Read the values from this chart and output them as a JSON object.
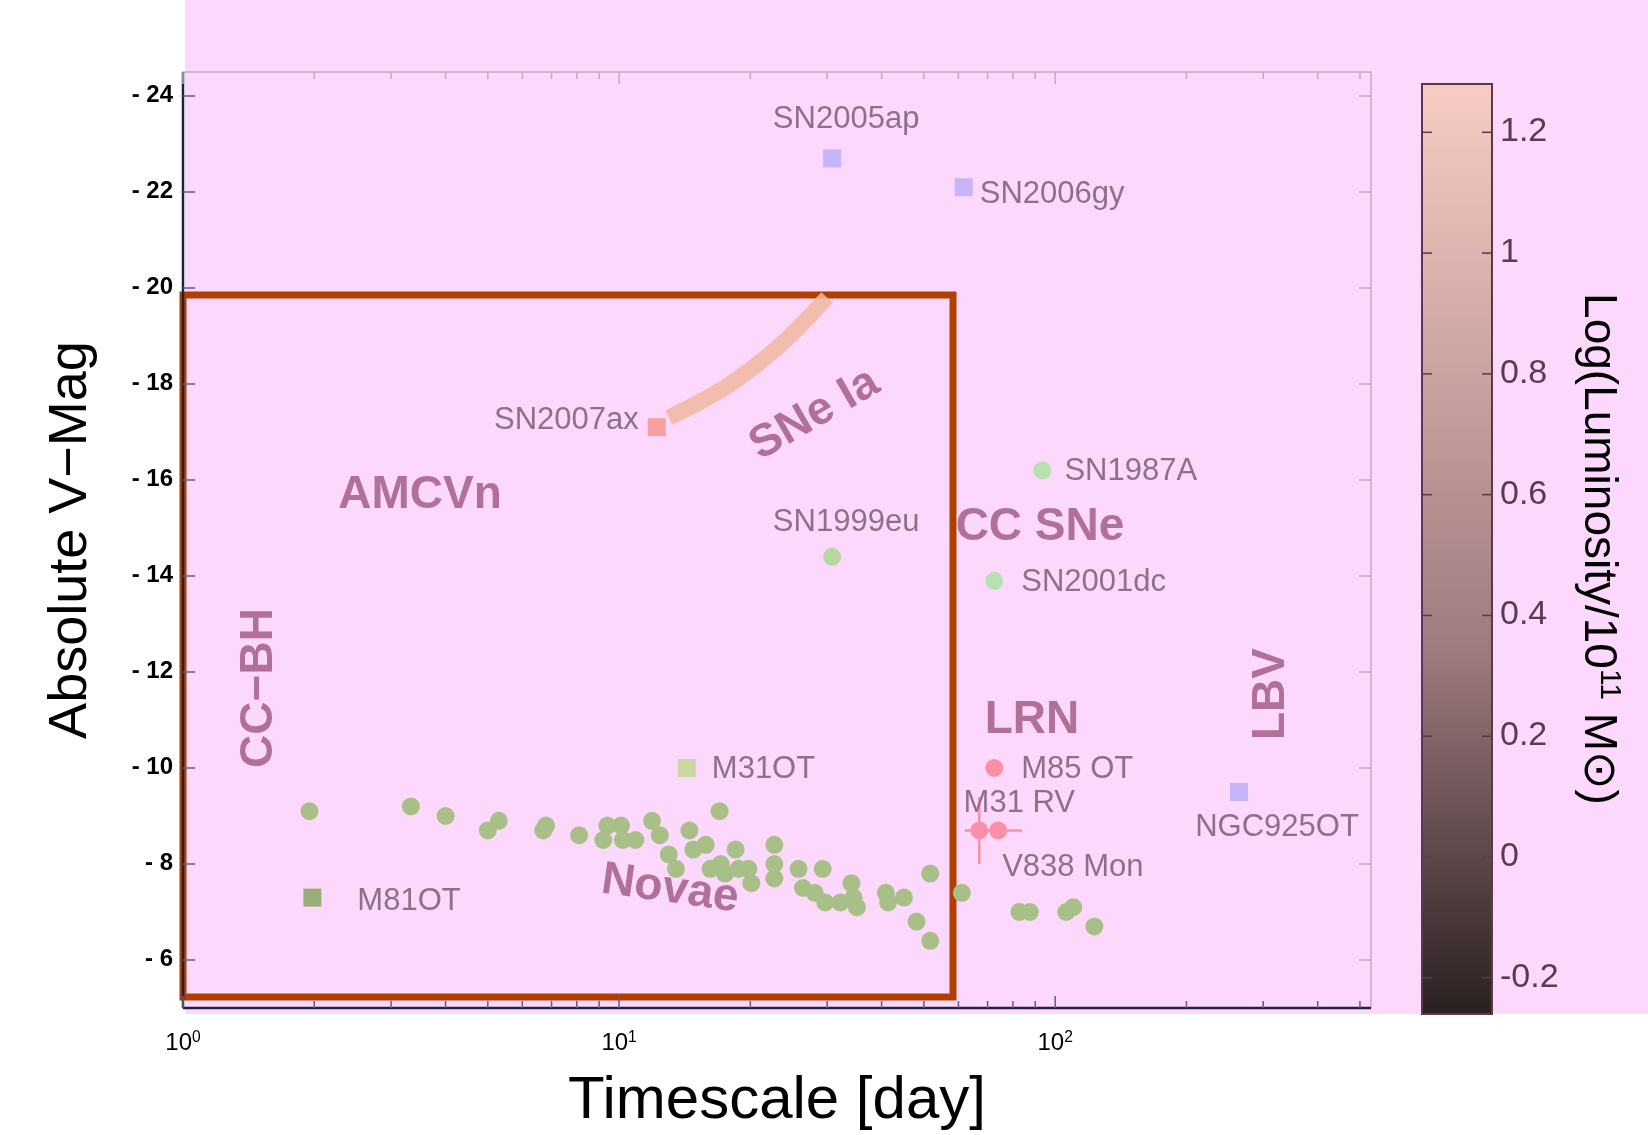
{
  "chart_data": {
    "type": "scatter",
    "xlabel": "Timescale [day]",
    "ylabel": "Absolute V−Mag",
    "clabel": "Log(Luminosity/10$^{11}$ M⊙)",
    "log": "x",
    "grid": false,
    "xlim": [
      1,
      530
    ],
    "ylim": [
      -5,
      -24.5
    ],
    "xticks": [
      {
        "value": 1,
        "label": "10$^{0}$"
      },
      {
        "value": 2,
        "label": null
      },
      {
        "value": 3,
        "label": null
      },
      {
        "value": 4,
        "label": null
      },
      {
        "value": 5,
        "label": null
      },
      {
        "value": 6,
        "label": null
      },
      {
        "value": 7,
        "label": null
      },
      {
        "value": 8,
        "label": null
      },
      {
        "value": 9,
        "label": null
      },
      {
        "value": 10,
        "label": "10$^{1}$"
      },
      {
        "value": 20,
        "label": null
      },
      {
        "value": 30,
        "label": null
      },
      {
        "value": 40,
        "label": null
      },
      {
        "value": 50,
        "label": null
      },
      {
        "value": 60,
        "label": null
      },
      {
        "value": 70,
        "label": null
      },
      {
        "value": 80,
        "label": null
      },
      {
        "value": 90,
        "label": null
      },
      {
        "value": 100,
        "label": "10$^{2}$"
      },
      {
        "value": 200,
        "label": null
      },
      {
        "value": 300,
        "label": null
      },
      {
        "value": 400,
        "label": null
      },
      {
        "value": 500,
        "label": null
      }
    ],
    "yticks": [
      {
        "value": -24,
        "label": "- 24"
      },
      {
        "value": -22,
        "label": "- 22"
      },
      {
        "value": -20,
        "label": "- 20"
      },
      {
        "value": -18,
        "label": "- 18"
      },
      {
        "value": -16,
        "label": "- 16"
      },
      {
        "value": -14,
        "label": "- 14"
      },
      {
        "value": -12,
        "label": "- 12"
      },
      {
        "value": -10,
        "label": "- 10"
      },
      {
        "value": -8,
        "label": "- 8"
      },
      {
        "value": -6,
        "label": "- 6"
      }
    ],
    "clim": [
      -0.26,
      1.28
    ],
    "cticks": [
      -0.2,
      0,
      0.2,
      0.4,
      0.6,
      0.8,
      1,
      1.2
    ],
    "series": [
      {
        "name": "SN2005ap",
        "color": "#c8b4f8",
        "marker": "square",
        "x": [
          30.8
        ],
        "values": [
          -22.7
        ]
      },
      {
        "name": "SN2006gy",
        "color": "#c8b4f8",
        "marker": "square",
        "x": [
          61.7
        ],
        "values": [
          -22.1
        ]
      },
      {
        "name": "NGC925OT",
        "color": "#c8b4f8",
        "marker": "square",
        "x": [
          264
        ],
        "values": [
          -9.5
        ]
      },
      {
        "name": "SN2007ax",
        "color": "#f8a0a0",
        "marker": "square",
        "x": [
          12.2
        ],
        "values": [
          -17.1
        ]
      },
      {
        "name": "SN1987A",
        "color": "#b8e0b0",
        "marker": "circle",
        "x": [
          93.5
        ],
        "values": [
          -16.2
        ]
      },
      {
        "name": "SN1999eu",
        "color": "#b8d8a0",
        "marker": "circle",
        "x": [
          30.8
        ],
        "values": [
          -14.4
        ]
      },
      {
        "name": "SN2001dc",
        "color": "#b8e0b0",
        "marker": "circle",
        "x": [
          72.5
        ],
        "values": [
          -13.9
        ]
      },
      {
        "name": "M31OT",
        "color": "#c8d8a0",
        "marker": "square",
        "x": [
          14.3
        ],
        "values": [
          -10.0
        ]
      },
      {
        "name": "M81OT",
        "color": "#98b078",
        "marker": "square",
        "x": [
          1.98
        ],
        "values": [
          -7.3
        ]
      },
      {
        "name": "M85 OT",
        "color": "#f890a8",
        "marker": "circle",
        "x": [
          72.5
        ],
        "values": [
          -10.0
        ]
      },
      {
        "name": "M31 RV",
        "color": "#f890a8",
        "marker": "circle",
        "x": [
          67
        ],
        "values": [
          -8.7
        ],
        "errors": [
          [
            -9.4,
            -8.0
          ]
        ]
      },
      {
        "name": "V838 Mon",
        "color": "#f890a8",
        "marker": "circle",
        "x": [
          74
        ],
        "values": [
          -8.7
        ],
        "xerrors": [
          [
            62,
            84
          ]
        ]
      },
      {
        "color": "#a8c088",
        "marker": "circle",
        "x": [
          1.95,
          3.33,
          4.0,
          5.0,
          5.3,
          6.7,
          6.8,
          8.1,
          9.2,
          9.4,
          10.1,
          10.2,
          10.9,
          11.9,
          12.4,
          13.0,
          13.5,
          14.5,
          14.8,
          15.8,
          16.2,
          17.0,
          17.1,
          17.5,
          18.5,
          18.8,
          19.8,
          20.1,
          22.7,
          22.7,
          22.7,
          25.8,
          26.4,
          28.1,
          29.3,
          29.7,
          32.2,
          34.1,
          34.5,
          35.1,
          40.9,
          41.4,
          45.0,
          48.1,
          51.7,
          51.7,
          61.1,
          82.8,
          87.5,
          106,
          110,
          123
        ],
        "values": [
          -9.1,
          -9.2,
          -9.0,
          -8.7,
          -8.9,
          -8.7,
          -8.8,
          -8.6,
          -8.5,
          -8.8,
          -8.8,
          -8.5,
          -8.5,
          -8.9,
          -8.6,
          -8.2,
          -7.9,
          -8.7,
          -8.3,
          -8.4,
          -7.9,
          -9.1,
          -8.0,
          -7.8,
          -8.3,
          -7.9,
          -7.9,
          -7.6,
          -8.4,
          -8.0,
          -7.7,
          -7.9,
          -7.5,
          -7.4,
          -7.9,
          -7.2,
          -7.2,
          -7.6,
          -7.3,
          -7.1,
          -7.4,
          -7.2,
          -7.3,
          -6.8,
          -6.4,
          -7.8,
          -7.4,
          -7.0,
          -7.0,
          -7.0,
          -7.1,
          -6.7
        ]
      },
      {
        "type": "line",
        "color": "#f0b8a0",
        "x": [
          13,
          18,
          24,
          30
        ],
        "values": [
          -17.3,
          -18.0,
          -18.9,
          -19.8
        ]
      }
    ],
    "annotations": [
      "SNe Ia",
      "AMCVn",
      "CC SNe",
      "CC−BH",
      "LBV",
      "LRN",
      "Novae"
    ]
  }
}
